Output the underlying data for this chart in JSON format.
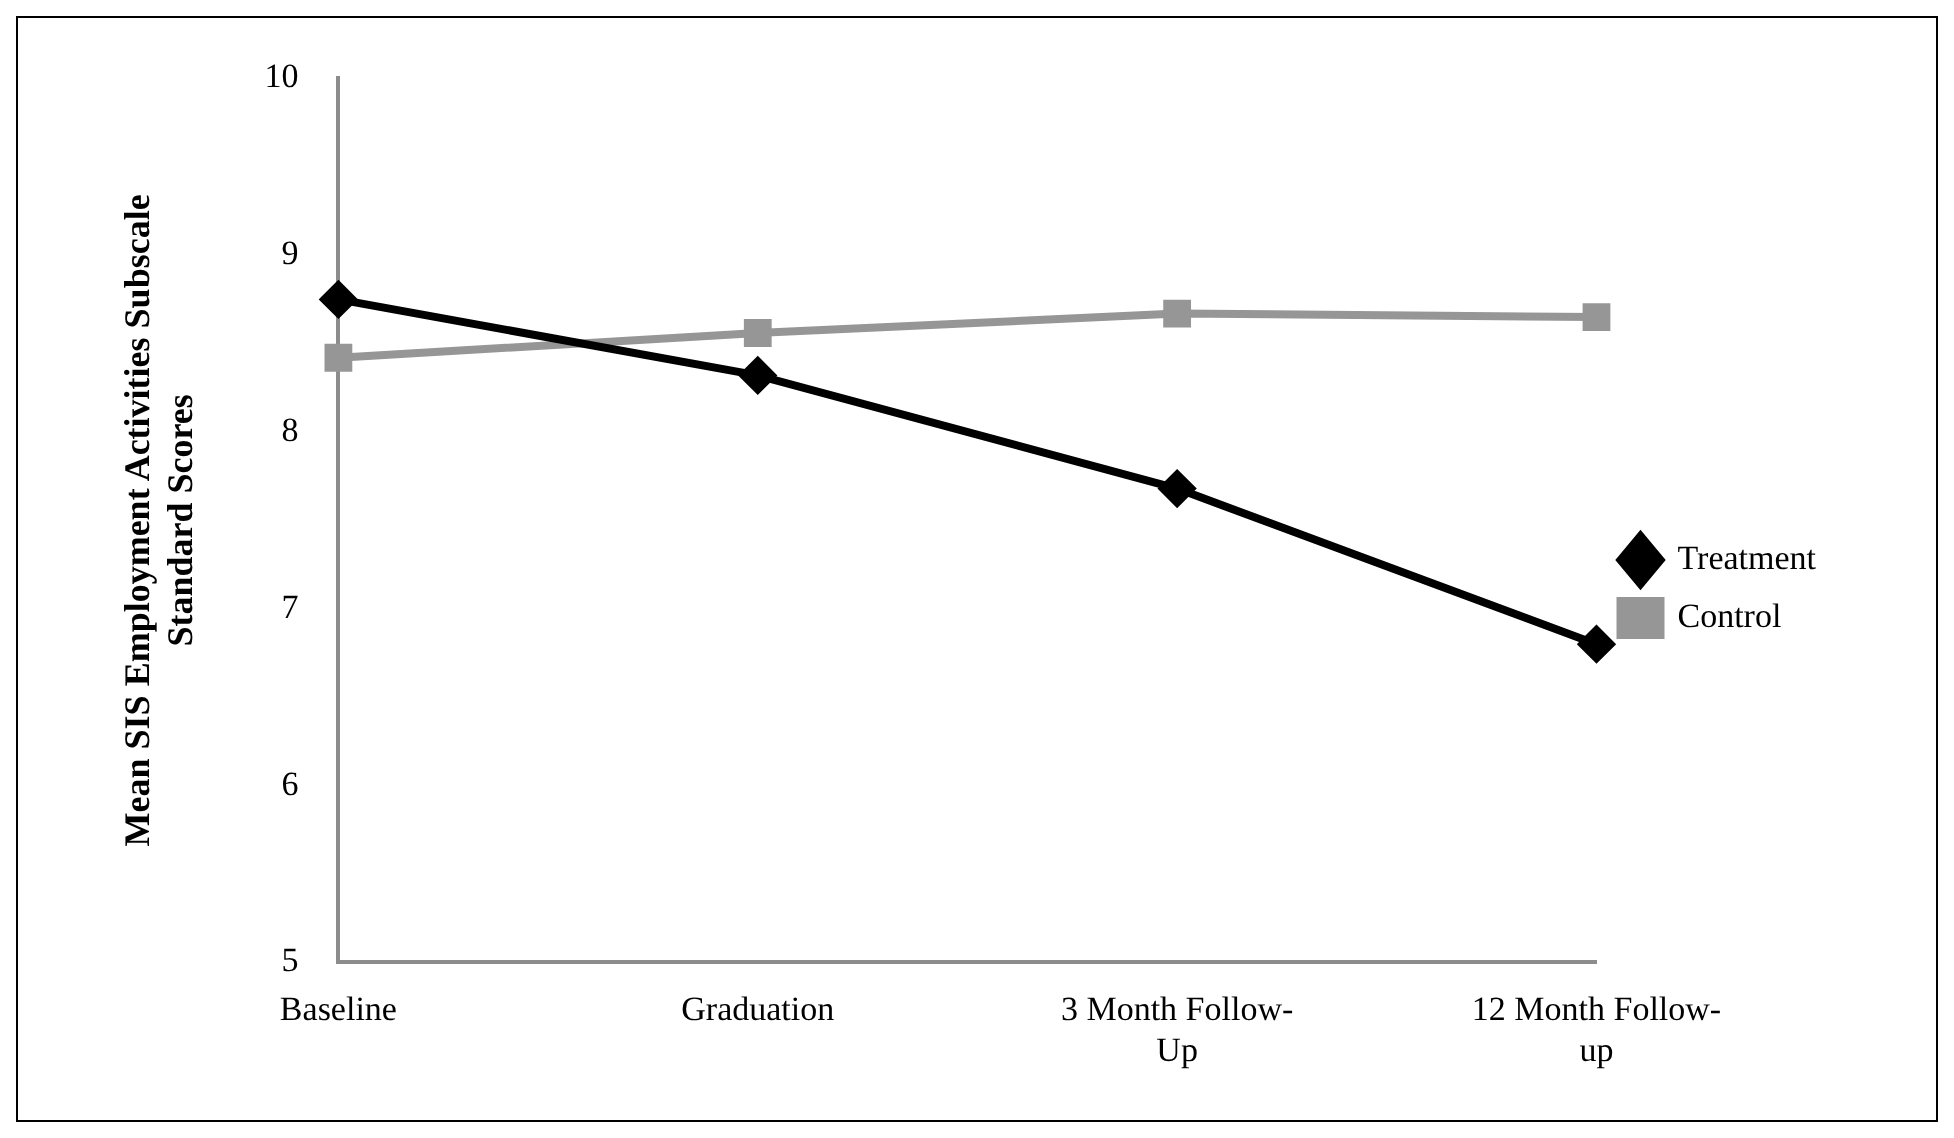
{
  "chart_data": {
    "type": "line",
    "ylabel": "Mean SIS Employment Activities Subscale Standard Scores",
    "categories": [
      "Baseline",
      "Graduation",
      "3 Month Follow-Up",
      "12 Month Follow-up"
    ],
    "series": [
      {
        "name": "Treatment",
        "color": "#000000",
        "values": [
          8.75,
          8.32,
          7.68,
          6.8
        ],
        "marker": "diamond"
      },
      {
        "name": "Control",
        "color": "#969696",
        "values": [
          8.42,
          8.56,
          8.67,
          8.65
        ],
        "marker": "square"
      }
    ],
    "ylim": [
      5,
      10
    ],
    "yticks": [
      5,
      6,
      7,
      8,
      9,
      10
    ],
    "grid": false,
    "legend": "right",
    "line_style": "solid"
  }
}
